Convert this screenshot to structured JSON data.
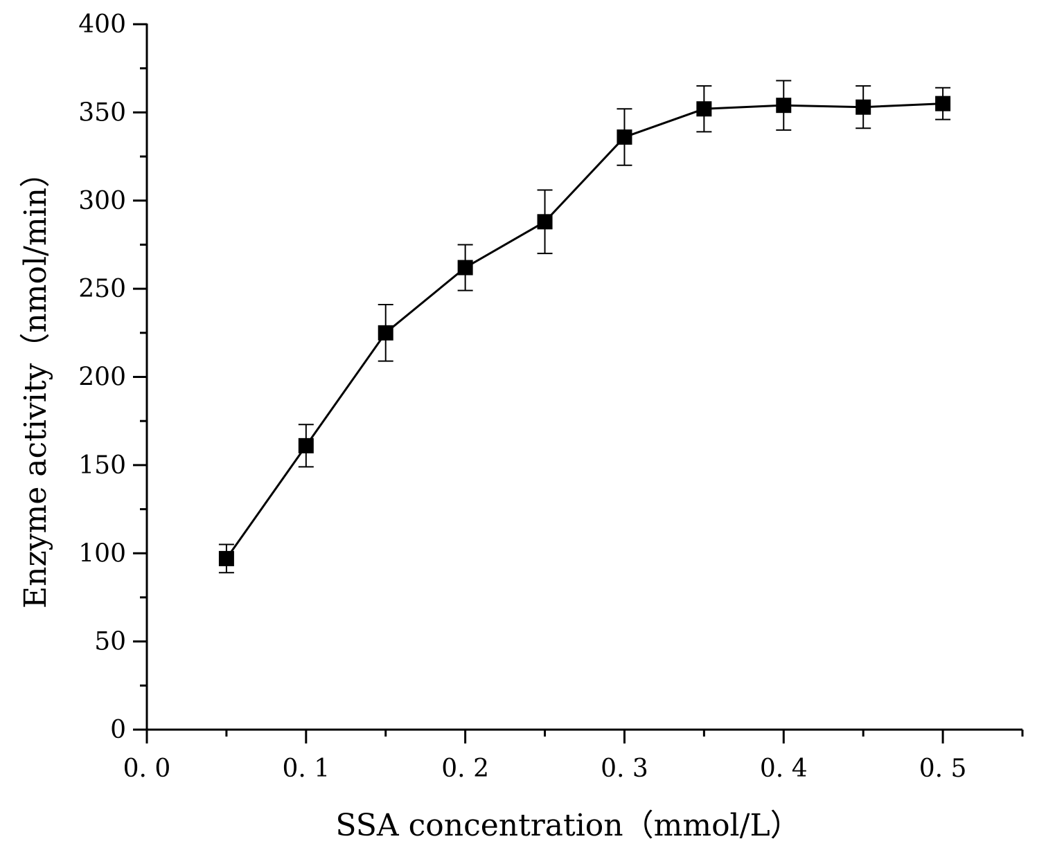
{
  "chart_data": {
    "type": "line",
    "title": "",
    "xlabel": "SSA concentration（mmol/L）",
    "ylabel": "Enzyme activity（nmol/min）",
    "xlim": [
      0,
      0.55
    ],
    "ylim": [
      0,
      400
    ],
    "x_ticks": [
      0,
      0.1,
      0.2,
      0.3,
      0.4,
      0.5
    ],
    "x_tick_labels": [
      "0. 0",
      "0. 1",
      "0. 2",
      "0. 3",
      "0. 4",
      "0. 5"
    ],
    "y_ticks": [
      0,
      50,
      100,
      150,
      200,
      250,
      300,
      350,
      400
    ],
    "y_tick_labels": [
      "0",
      "50",
      "100",
      "150",
      "200",
      "250",
      "300",
      "350",
      "400"
    ],
    "grid": false,
    "legend": "none",
    "series": [
      {
        "name": "Enzyme activity",
        "marker": "square",
        "color": "#000000",
        "x": [
          0.05,
          0.1,
          0.15,
          0.2,
          0.25,
          0.3,
          0.35,
          0.4,
          0.45,
          0.5
        ],
        "y": [
          97,
          161,
          225,
          262,
          288,
          336,
          352,
          354,
          353,
          355
        ],
        "error": [
          8,
          12,
          16,
          13,
          18,
          16,
          13,
          14,
          12,
          9
        ]
      }
    ]
  }
}
